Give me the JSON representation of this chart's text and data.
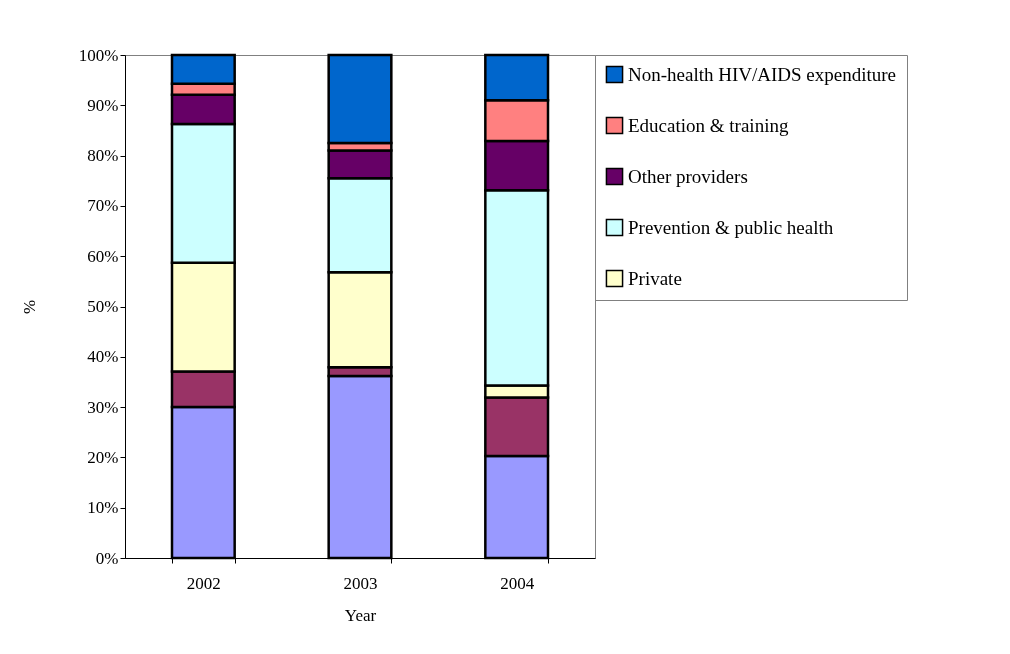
{
  "chart_data": {
    "type": "bar",
    "stacked": true,
    "xlabel": "Year",
    "ylabel": "%",
    "categories": [
      "2002",
      "2003",
      "2004"
    ],
    "series": [
      {
        "color": "#9999ff",
        "values": [
          30,
          36.2,
          20.3
        ]
      },
      {
        "color": "#993366",
        "values": [
          7.1,
          1.7,
          11.6
        ]
      },
      {
        "name": "Private",
        "color": "#ffffcc",
        "values": [
          21.6,
          18.9,
          2.4
        ]
      },
      {
        "name": "Prevention & public health",
        "color": "#ccffff",
        "values": [
          27.6,
          18.7,
          38.8
        ]
      },
      {
        "name": "Other providers",
        "color": "#660066",
        "values": [
          5.8,
          5.5,
          9.8
        ]
      },
      {
        "name": "Education & training",
        "color": "#ff8080",
        "values": [
          2.2,
          1.5,
          8.1
        ]
      },
      {
        "name": "Non-health HIV/AIDS expenditure",
        "color": "#0066cc",
        "values": [
          5.7,
          17.5,
          9.0
        ]
      }
    ],
    "ylim": [
      0,
      100
    ],
    "yticks": [
      {
        "value": 0,
        "label": "0%"
      },
      {
        "value": 10,
        "label": "10%"
      },
      {
        "value": 20,
        "label": "20%"
      },
      {
        "value": 30,
        "label": "30%"
      },
      {
        "value": 40,
        "label": "40%"
      },
      {
        "value": 50,
        "label": "50%"
      },
      {
        "value": 60,
        "label": "60%"
      },
      {
        "value": 70,
        "label": "70%"
      },
      {
        "value": 80,
        "label": "80%"
      },
      {
        "value": 90,
        "label": "90%"
      },
      {
        "value": 100,
        "label": "100%"
      }
    ],
    "grid": false,
    "legend": "top right"
  }
}
